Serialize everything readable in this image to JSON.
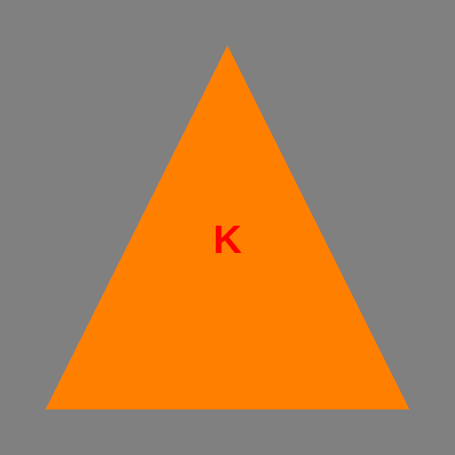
{
  "background_color": "#808080",
  "shape": {
    "kind": "triangle",
    "fill_color": "#FF8000",
    "label": "K",
    "label_color": "#FF0000"
  }
}
